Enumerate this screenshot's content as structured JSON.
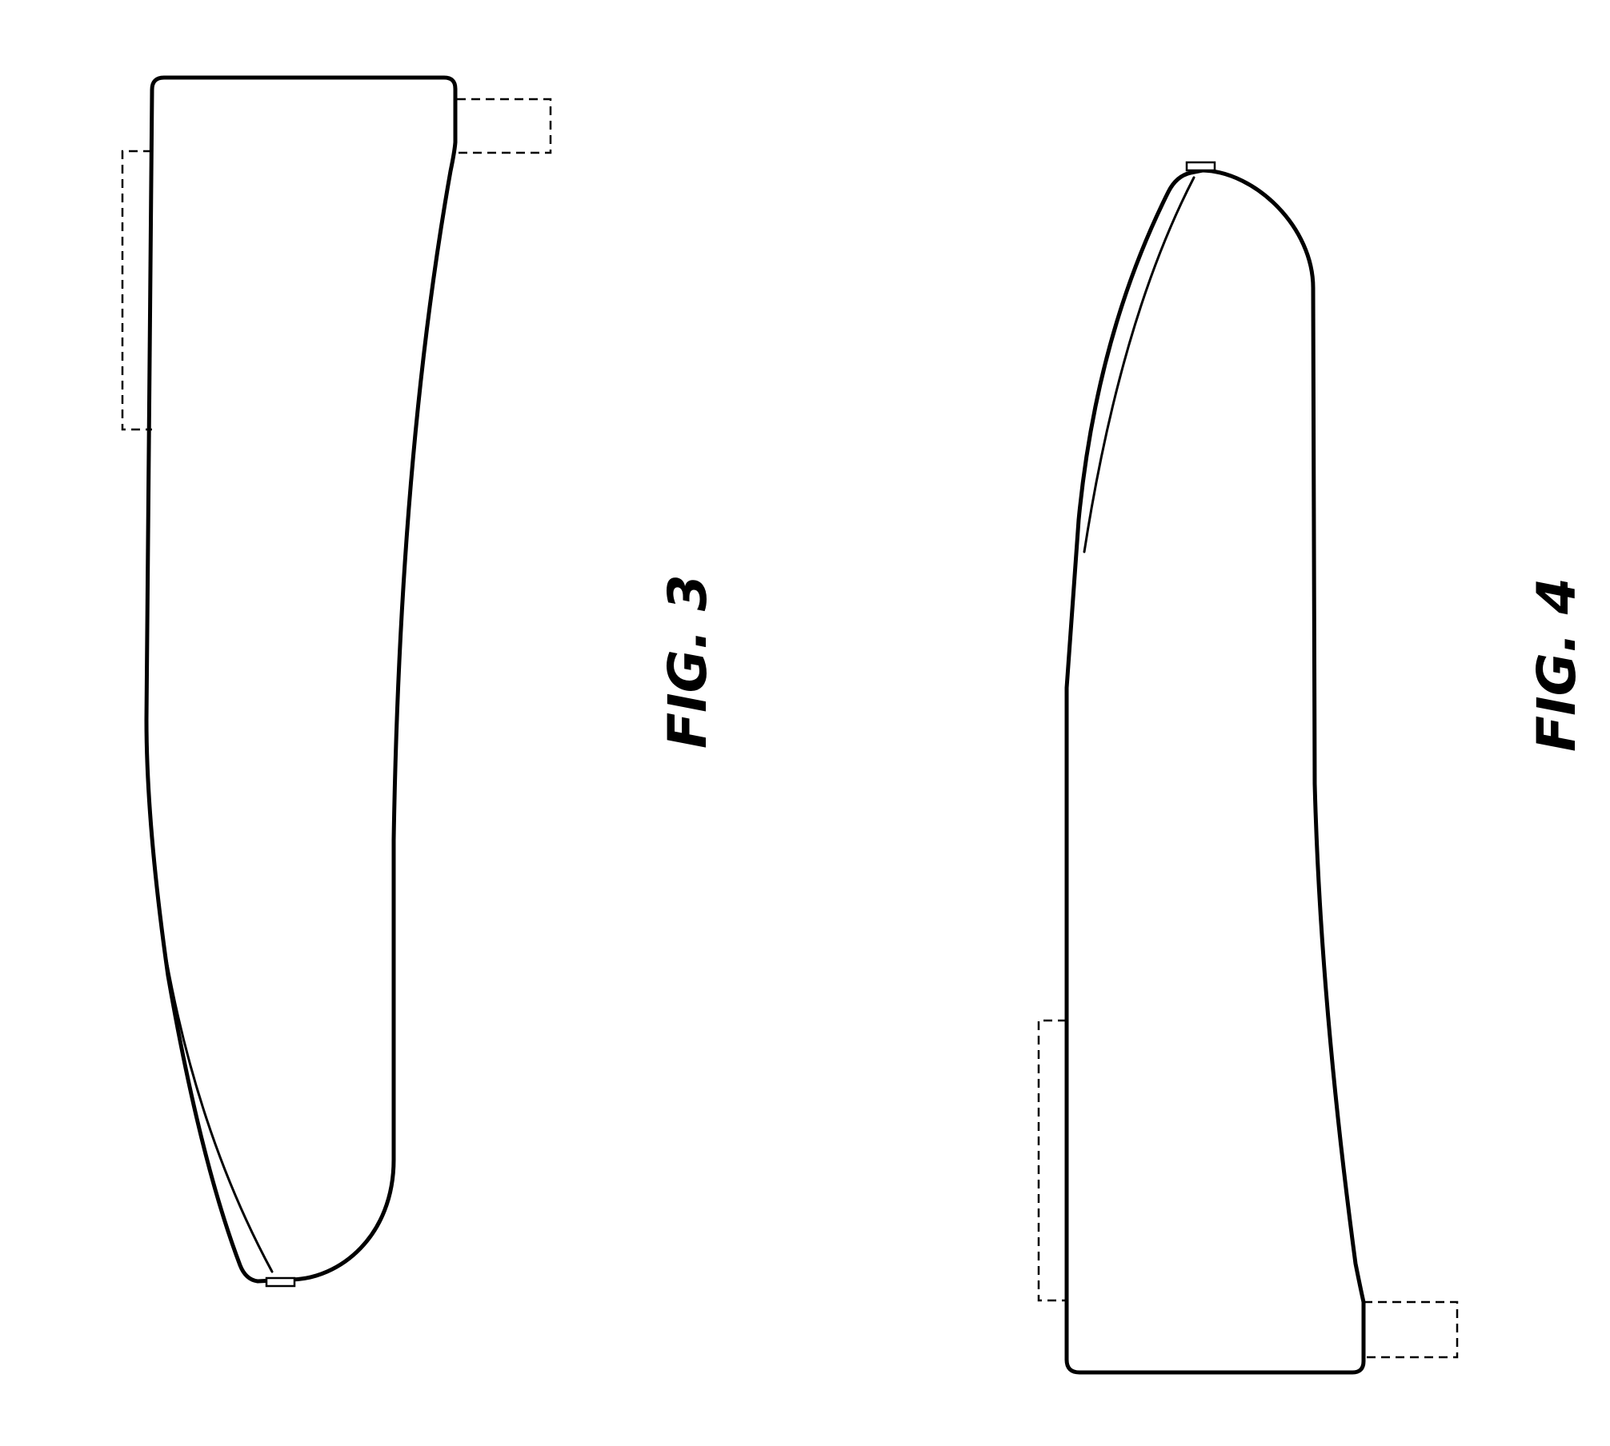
{
  "figures": [
    {
      "id": "fig3",
      "label": "FIG. 3"
    },
    {
      "id": "fig4",
      "label": "FIG. 4"
    }
  ],
  "colors": {
    "line": "#000000",
    "background": "#ffffff"
  }
}
